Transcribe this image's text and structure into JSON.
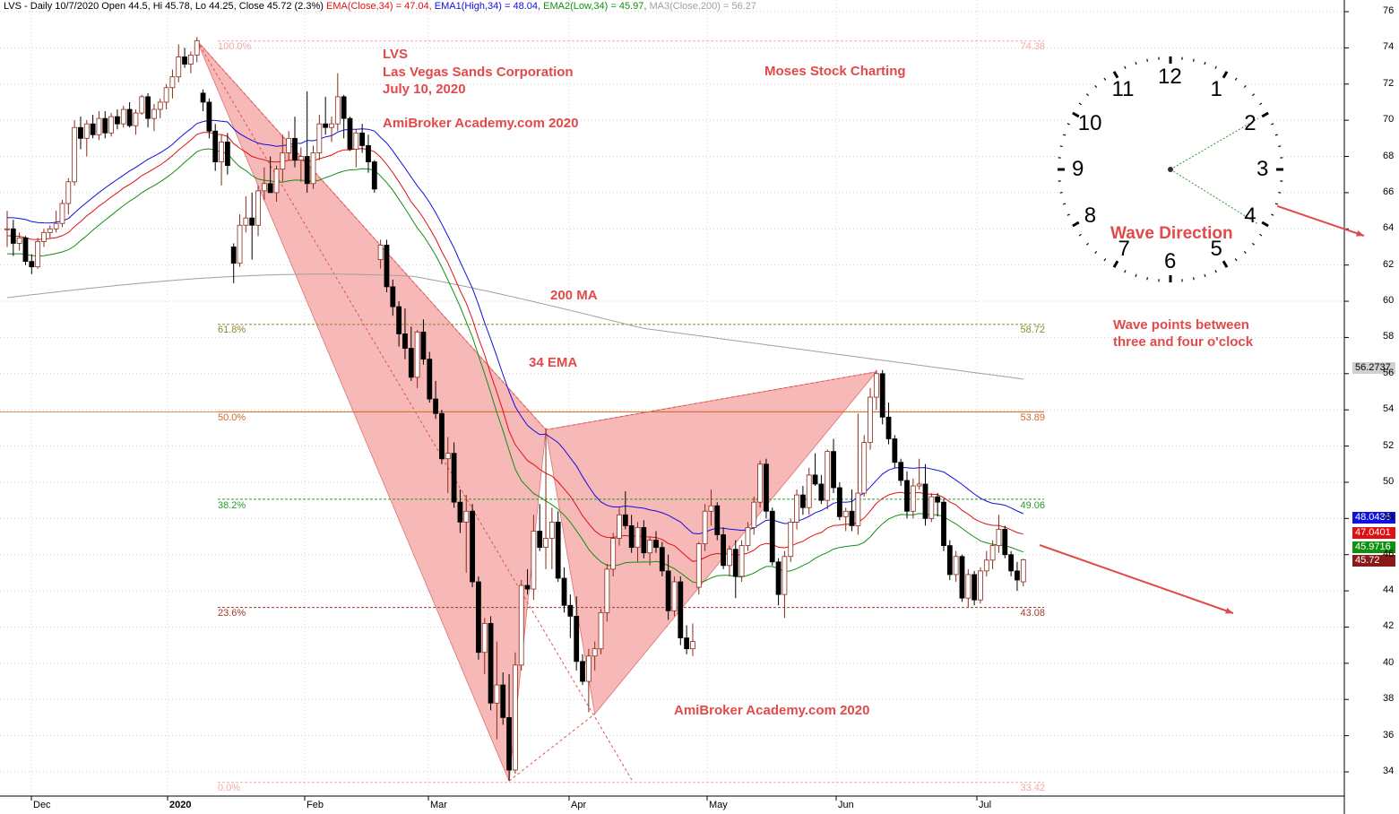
{
  "header": {
    "title": "LVS - Daily 10/7/2020 Open 44.5, Hi 45.78, Lo 44.25, Close 45.72 (2.3%)",
    "ema": "EMA(Close,34) = 47.04,",
    "ema1": "EMA1(High,34) = 48.04,",
    "ema2": "EMA2(Low,34) = 45.97,",
    "ma3": "MA3(Close,200) = 56.27"
  },
  "annotations": {
    "ticker": "LVS",
    "company": "Las Vegas Sands Corporation",
    "date": "July 10, 2020",
    "site_top": "AmiBroker Academy.com  2020",
    "brand": "Moses Stock Charting",
    "ma200": "200 MA",
    "ema34": "34 EMA",
    "wave_direction": "Wave Direction",
    "wave_points_1": "Wave points between",
    "wave_points_2": "three and four o'clock",
    "site_bottom": "AmiBroker Academy.com 2020"
  },
  "fib": [
    {
      "pct": "100.0%",
      "value": "74.38",
      "price": 74.38,
      "color": "#f4a8a8"
    },
    {
      "pct": "61.8%",
      "value": "58.72",
      "price": 58.72,
      "color": "#8a8a2a"
    },
    {
      "pct": "50.0%",
      "value": "53.89",
      "price": 53.89,
      "color": "#d06a2a"
    },
    {
      "pct": "38.2%",
      "value": "49.06",
      "price": 49.06,
      "color": "#2a9a2a"
    },
    {
      "pct": "23.6%",
      "value": "43.08",
      "price": 43.08,
      "color": "#a03a2a"
    },
    {
      "pct": "0.0%",
      "value": "33.42",
      "price": 33.42,
      "color": "#f4a8a8"
    }
  ],
  "price_tags": {
    "ma200": "56.2737",
    "ema1": "48.0436",
    "ema": "47.0401",
    "ema2": "45.9716",
    "close": "45.72"
  },
  "clock": {
    "numbers": [
      "12",
      "1",
      "2",
      "3",
      "4",
      "5",
      "6",
      "7",
      "8",
      "9",
      "10",
      "11"
    ]
  },
  "colors": {
    "ema": "#e01010",
    "ema1": "#1010e0",
    "ema2": "#109010",
    "ma200": "#a0a0a0",
    "pattern_fill": "#f4a0a0",
    "annotation": "#e24a4a"
  },
  "chart_data": {
    "type": "candlestick",
    "y_axis_ticks": [
      34,
      36,
      38,
      40,
      42,
      44,
      46,
      48,
      50,
      52,
      54,
      56,
      58,
      60,
      62,
      64,
      66,
      68,
      70,
      72,
      74,
      76
    ],
    "ylim": [
      32.5,
      76.5
    ],
    "x_labels": [
      "Dec",
      "2020",
      "Feb",
      "Mar",
      "Apr",
      "May",
      "Jun",
      "Jul"
    ],
    "candles": [
      [
        0,
        64,
        65,
        63,
        64
      ],
      [
        1,
        64,
        64.5,
        62.5,
        63.2
      ],
      [
        2,
        63.2,
        63.8,
        62.8,
        63.5
      ],
      [
        3,
        63.5,
        63.6,
        62,
        62.2
      ],
      [
        4,
        62.2,
        62.6,
        61.5,
        61.9
      ],
      [
        5,
        61.9,
        63.5,
        61.8,
        63.3
      ],
      [
        6,
        63.3,
        64,
        63,
        63.8
      ],
      [
        7,
        63.8,
        64.2,
        63.5,
        64
      ],
      [
        8,
        64,
        65,
        63.8,
        64.3
      ],
      [
        9,
        64.3,
        65.6,
        64.1,
        65.4
      ],
      [
        10,
        65.4,
        66.8,
        64.8,
        66.6
      ],
      [
        11,
        66.6,
        70,
        66.4,
        69.6
      ],
      [
        12,
        69.6,
        70.2,
        68.4,
        69
      ],
      [
        13,
        69,
        70,
        68,
        69.8
      ],
      [
        14,
        69.8,
        70.3,
        69,
        69.2
      ],
      [
        15,
        69.2,
        70.5,
        68.9,
        70.1
      ],
      [
        16,
        70.1,
        70.5,
        69,
        69.3
      ],
      [
        17,
        69.3,
        70.4,
        69.1,
        70.2
      ],
      [
        18,
        70.2,
        70.6,
        69.5,
        69.8
      ],
      [
        19,
        69.8,
        70.8,
        69.6,
        70.6
      ],
      [
        20,
        70.6,
        71,
        69.6,
        69.7
      ],
      [
        21,
        69.7,
        70.6,
        69.2,
        70.4
      ],
      [
        22,
        70.4,
        71.4,
        70.3,
        71.3
      ],
      [
        23,
        71.3,
        71.5,
        69.6,
        70.1
      ],
      [
        24,
        70.1,
        70.9,
        69.4,
        70.6
      ],
      [
        25,
        70.6,
        71.2,
        70.1,
        71
      ],
      [
        26,
        71,
        72,
        70.6,
        71.8
      ],
      [
        27,
        71.8,
        72.8,
        71.2,
        72.4
      ],
      [
        28,
        72.4,
        74.2,
        72.1,
        73.5
      ],
      [
        29,
        73.5,
        74,
        72.9,
        73.1
      ],
      [
        30,
        73.1,
        73.8,
        72.6,
        73.6
      ],
      [
        31,
        73.6,
        74.6,
        73.2,
        74.4
      ],
      [
        32,
        71.5,
        71.7,
        70.5,
        71
      ],
      [
        33,
        71,
        71.2,
        69,
        69.4
      ],
      [
        34,
        69.4,
        69.8,
        67.2,
        67.7
      ],
      [
        35,
        67.7,
        69.2,
        66.4,
        68.8
      ],
      [
        36,
        68.8,
        69.3,
        67,
        67.5
      ],
      [
        37,
        63,
        63.2,
        61,
        62.1
      ],
      [
        38,
        62.1,
        64.8,
        61.9,
        64.2
      ],
      [
        39,
        64.2,
        65.8,
        63.8,
        64.6
      ],
      [
        40,
        64.6,
        66,
        62.3,
        64.2
      ],
      [
        41,
        64.2,
        66.4,
        63.6,
        66.1
      ],
      [
        42,
        66.1,
        67.4,
        65.6,
        66.5
      ],
      [
        43,
        66.5,
        68,
        66,
        66
      ],
      [
        44,
        66,
        67.5,
        65.5,
        67.3
      ],
      [
        45,
        67.3,
        69.2,
        66.6,
        68.2
      ],
      [
        46,
        68.2,
        69.4,
        67.8,
        69
      ],
      [
        47,
        69,
        70.2,
        67.4,
        67.8
      ],
      [
        48,
        67.8,
        68.5,
        66.6,
        68
      ],
      [
        49,
        68,
        71.6,
        66,
        66.5
      ],
      [
        50,
        66.5,
        68.6,
        66.2,
        68.2
      ],
      [
        51,
        68.2,
        70.3,
        67.8,
        69.8
      ],
      [
        52,
        69.8,
        71.3,
        69.2,
        69.6
      ],
      [
        53,
        69.6,
        70.2,
        68.8,
        69.8
      ],
      [
        54,
        69.8,
        72.6,
        69.4,
        71.3
      ],
      [
        55,
        71.3,
        71.4,
        69,
        70.1
      ],
      [
        56,
        70.1,
        70.2,
        68.3,
        68.4
      ],
      [
        57,
        68.4,
        69.5,
        67.4,
        69.3
      ],
      [
        58,
        69.3,
        69.8,
        68.2,
        68.6
      ],
      [
        59,
        68.6,
        69.2,
        67.1,
        67.7
      ],
      [
        60,
        67.7,
        67.8,
        66,
        66.2
      ],
      [
        61,
        62.3,
        63.4,
        61.8,
        63.1
      ],
      [
        62,
        63.1,
        63.4,
        60.5,
        60.8
      ],
      [
        63,
        60.8,
        61.2,
        59.2,
        59.7
      ],
      [
        64,
        59.7,
        60,
        57.5,
        58.2
      ],
      [
        65,
        58.2,
        59.6,
        56.8,
        57.4
      ],
      [
        66,
        57.4,
        58.6,
        55.6,
        55.8
      ],
      [
        67,
        55.8,
        58.4,
        55.2,
        58.3
      ],
      [
        68,
        58.3,
        59,
        56.5,
        56.8
      ],
      [
        69,
        56.8,
        57.2,
        54.4,
        54.6
      ],
      [
        70,
        54.6,
        55.6,
        53.5,
        53.8
      ],
      [
        71,
        53.8,
        54,
        51,
        51.3
      ],
      [
        72,
        51.3,
        52.5,
        49.4,
        51.6
      ],
      [
        73,
        51.6,
        52.2,
        48.6,
        48.9
      ],
      [
        74,
        48.9,
        49.6,
        47.2,
        47.8
      ],
      [
        75,
        47.8,
        49.3,
        45,
        48.4
      ],
      [
        76,
        48.4,
        48.8,
        44.2,
        44.5
      ],
      [
        77,
        44.5,
        44.8,
        40.2,
        40.6
      ],
      [
        78,
        40.6,
        42.5,
        39.4,
        42.2
      ],
      [
        79,
        42.2,
        42.6,
        37.4,
        37.8
      ],
      [
        80,
        37.8,
        41.2,
        35.8,
        38.8
      ],
      [
        81,
        38.8,
        39.5,
        36.6,
        37
      ],
      [
        82,
        37,
        39.4,
        33.5,
        34.1
      ],
      [
        83,
        34.1,
        40.6,
        33.9,
        39.9
      ],
      [
        84,
        39.9,
        44.6,
        39.6,
        44.3
      ],
      [
        85,
        44.3,
        45.2,
        43.8,
        44.1
      ],
      [
        86,
        44.1,
        48.2,
        43.5,
        47.3
      ],
      [
        87,
        47.3,
        48.8,
        46.2,
        46.4
      ],
      [
        88,
        46.4,
        53,
        45.2,
        46.9
      ],
      [
        89,
        46.9,
        48.6,
        45.2,
        47.8
      ],
      [
        90,
        47.8,
        48.4,
        44.5,
        44.7
      ],
      [
        91,
        44.7,
        45.3,
        42.8,
        43.2
      ],
      [
        92,
        43.2,
        43.8,
        41.4,
        42.6
      ],
      [
        93,
        42.6,
        43.7,
        39.6,
        40.1
      ],
      [
        94,
        40.1,
        40.5,
        38.8,
        39
      ],
      [
        95,
        39,
        40.8,
        37.3,
        40.4
      ],
      [
        96,
        40.4,
        41.2,
        39.6,
        40.8
      ],
      [
        97,
        40.8,
        43,
        40.5,
        42.8
      ],
      [
        98,
        42.8,
        45.5,
        42.3,
        45.2
      ],
      [
        99,
        45.2,
        47.2,
        44.8,
        46.9
      ],
      [
        100,
        46.9,
        48.6,
        46.5,
        48.2
      ],
      [
        101,
        48.2,
        49.5,
        47.4,
        47.6
      ],
      [
        102,
        47.6,
        48.2,
        46.1,
        46.4
      ],
      [
        103,
        46.4,
        47.8,
        45.6,
        47.5
      ],
      [
        104,
        47.5,
        47.9,
        45.8,
        46.1
      ],
      [
        105,
        46.1,
        47,
        45.4,
        46.8
      ],
      [
        106,
        46.8,
        47.3,
        46.1,
        46.4
      ],
      [
        107,
        46.4,
        46.7,
        44.8,
        45.1
      ],
      [
        108,
        45.1,
        46,
        42.4,
        42.9
      ],
      [
        109,
        42.9,
        44.8,
        42.6,
        44.5
      ],
      [
        110,
        44.5,
        44.8,
        41,
        41.4
      ],
      [
        111,
        41.4,
        42.1,
        40.5,
        40.8
      ],
      [
        112,
        40.8,
        42.2,
        40.4,
        41.2
      ],
      [
        113,
        44.2,
        46.7,
        43.8,
        46.6
      ],
      [
        114,
        46.6,
        48.8,
        46.2,
        48.4
      ],
      [
        115,
        48.4,
        49.6,
        47.6,
        48.7
      ],
      [
        116,
        48.7,
        48.9,
        46.8,
        47.1
      ],
      [
        117,
        47.1,
        47.5,
        45.2,
        45.4
      ],
      [
        118,
        45.4,
        46.5,
        44.8,
        46.3
      ],
      [
        119,
        46.3,
        46.8,
        43.6,
        44.8
      ],
      [
        120,
        44.8,
        46.8,
        44.5,
        46.5
      ],
      [
        121,
        46.5,
        47.8,
        46.2,
        47.5
      ],
      [
        122,
        47.5,
        49.2,
        47.1,
        48.9
      ],
      [
        123,
        48.9,
        51.2,
        48.6,
        51
      ],
      [
        124,
        51,
        51.3,
        48,
        48.4
      ],
      [
        125,
        48.4,
        48.6,
        45.4,
        45.6
      ],
      [
        126,
        45.6,
        45.8,
        43.2,
        43.8
      ],
      [
        127,
        43.8,
        46.2,
        42.5,
        45.9
      ],
      [
        128,
        45.9,
        48,
        45.6,
        47.8
      ],
      [
        129,
        47.8,
        49.6,
        47.4,
        49.3
      ],
      [
        130,
        49.3,
        49.8,
        48.2,
        48.6
      ],
      [
        131,
        48.6,
        50.8,
        48.2,
        50.4
      ],
      [
        132,
        50.4,
        51.6,
        49.8,
        49.9
      ],
      [
        133,
        49.9,
        50.4,
        48.8,
        49
      ],
      [
        134,
        49,
        51.8,
        48.5,
        51.7
      ],
      [
        135,
        51.7,
        52.4,
        49.4,
        49.7
      ],
      [
        136,
        49.7,
        50,
        47.9,
        48.1
      ],
      [
        137,
        48.1,
        48.6,
        47.3,
        48.4
      ],
      [
        138,
        48.4,
        49.6,
        47.3,
        47.6
      ],
      [
        139,
        47.6,
        53.8,
        47.1,
        49.4
      ],
      [
        140,
        49.4,
        52.6,
        49.2,
        52.2
      ],
      [
        141,
        52.2,
        55.2,
        51.8,
        54.7
      ],
      [
        142,
        54.7,
        56.2,
        54,
        56
      ],
      [
        143,
        56,
        56.2,
        53.2,
        53.6
      ],
      [
        144,
        53.6,
        54.4,
        52.1,
        52.4
      ],
      [
        145,
        52.4,
        52.6,
        50.8,
        51.1
      ],
      [
        146,
        51.1,
        51.3,
        49.8,
        50.1
      ],
      [
        147,
        50.1,
        50.6,
        48,
        48.4
      ],
      [
        148,
        48.4,
        50.2,
        48,
        49.8
      ],
      [
        149,
        49.8,
        51.3,
        49.6,
        49.9
      ],
      [
        150,
        49.9,
        51,
        47.6,
        48
      ],
      [
        151,
        48,
        49.4,
        47.8,
        49.2
      ],
      [
        152,
        49.2,
        49.4,
        48.1,
        48.9
      ],
      [
        153,
        48.9,
        49.1,
        46.2,
        46.5
      ],
      [
        154,
        46.5,
        46.8,
        44.6,
        44.9
      ],
      [
        155,
        44.9,
        46.2,
        44.5,
        45.9
      ],
      [
        156,
        45.9,
        46,
        43.4,
        43.6
      ],
      [
        157,
        43.6,
        45.2,
        43.1,
        44.9
      ],
      [
        158,
        44.9,
        45.1,
        43.2,
        43.5
      ],
      [
        159,
        43.5,
        45.3,
        43.3,
        45.1
      ],
      [
        160,
        45.1,
        46.2,
        44.8,
        45.7
      ],
      [
        161,
        45.7,
        46.8,
        45.2,
        46.5
      ],
      [
        162,
        46.5,
        48.2,
        46.1,
        47.4
      ],
      [
        163,
        47.4,
        47.6,
        45.8,
        46
      ],
      [
        164,
        46,
        46.2,
        44.8,
        45.1
      ],
      [
        165,
        45.1,
        45.6,
        44,
        44.6
      ],
      [
        166,
        44.5,
        45.78,
        44.25,
        45.72
      ]
    ],
    "pattern_points": [
      [
        31,
        74.4
      ],
      [
        82,
        33.5
      ],
      [
        88,
        52.9
      ],
      [
        96,
        37.2
      ],
      [
        142,
        56.1
      ]
    ]
  }
}
